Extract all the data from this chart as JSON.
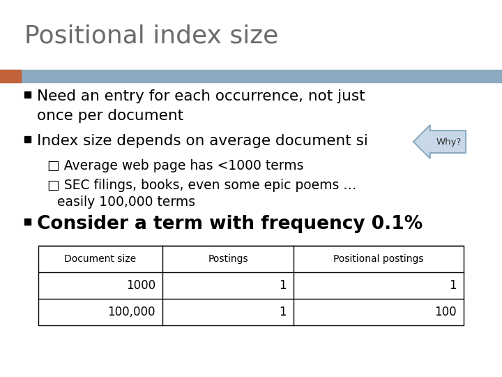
{
  "title": "Positional index size",
  "title_color": "#6b6b6b",
  "title_fontsize": 26,
  "bg_color": "#ffffff",
  "header_bar_color": "#8baabf",
  "header_bar_left_color": "#c0623a",
  "bullet1_line1": "Need an entry for each occurrence, not just",
  "bullet1_line2": "once per document",
  "bullet2": "Index size depends on average document si",
  "why_label": "Why?",
  "sub1": "□ Average web page has <1000 terms",
  "sub2_line1": "□ SEC filings, books, even some epic poems …",
  "sub2_line2": "   easily 100,000 terms",
  "bullet3": "Consider a term with frequency 0.1%",
  "table_headers": [
    "Document size",
    "Postings",
    "Positional postings"
  ],
  "table_rows": [
    [
      "1000",
      "1",
      "1"
    ],
    [
      "100,000",
      "1",
      "100"
    ]
  ],
  "bullet_color": "#000000",
  "bullet_fontsize": 15.5,
  "sub_fontsize": 13.5,
  "bullet3_fontsize": 19,
  "table_header_fontsize": 10,
  "table_data_fontsize": 12
}
